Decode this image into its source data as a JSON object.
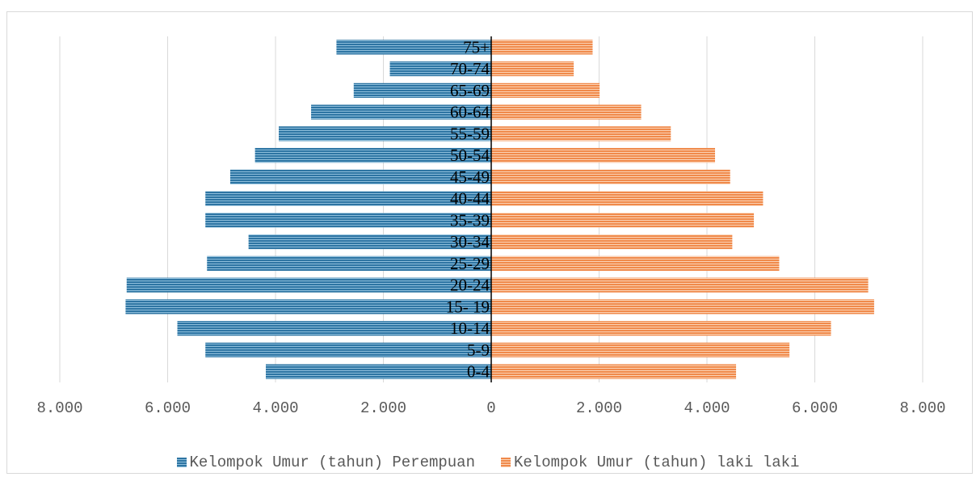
{
  "chart_data": {
    "type": "bar",
    "orientation": "horizontal",
    "layout": "population-pyramid",
    "title": "",
    "xlabel": "",
    "ylabel": "",
    "categories": [
      "0-4",
      "5-9",
      "10-14",
      "15- 19",
      "20-24",
      "25-29",
      "30-34",
      "35-39",
      "40-44",
      "45-49",
      "50-54",
      "55-59",
      "60-64",
      "65-69",
      "70-74",
      "75+"
    ],
    "series": [
      {
        "name": "Kelompok Umur (tahun) Perempuan",
        "side": "left",
        "color": "#2e75a3",
        "values": [
          4180,
          5300,
          5820,
          6780,
          6760,
          5270,
          4500,
          5300,
          5300,
          4840,
          4380,
          3940,
          3340,
          2550,
          1880,
          2870
        ]
      },
      {
        "name": "Kelompok Umur (tahun) laki laki",
        "side": "right",
        "color": "#f08a4b",
        "values": [
          4540,
          5530,
          6300,
          7100,
          6990,
          5340,
          4470,
          4870,
          5040,
          4430,
          4150,
          3330,
          2780,
          2010,
          1530,
          1880
        ]
      }
    ],
    "xlim": [
      -8000,
      8000
    ],
    "xticks": [
      {
        "value": -8000,
        "label": "8.000"
      },
      {
        "value": -6000,
        "label": "6.000"
      },
      {
        "value": -4000,
        "label": "4.000"
      },
      {
        "value": -2000,
        "label": "2.000"
      },
      {
        "value": 0,
        "label": "0"
      },
      {
        "value": 2000,
        "label": "2.000"
      },
      {
        "value": 4000,
        "label": "4.000"
      },
      {
        "value": 6000,
        "label": "6.000"
      },
      {
        "value": 8000,
        "label": "8.000"
      }
    ],
    "grid": true,
    "legend_position": "bottom"
  }
}
